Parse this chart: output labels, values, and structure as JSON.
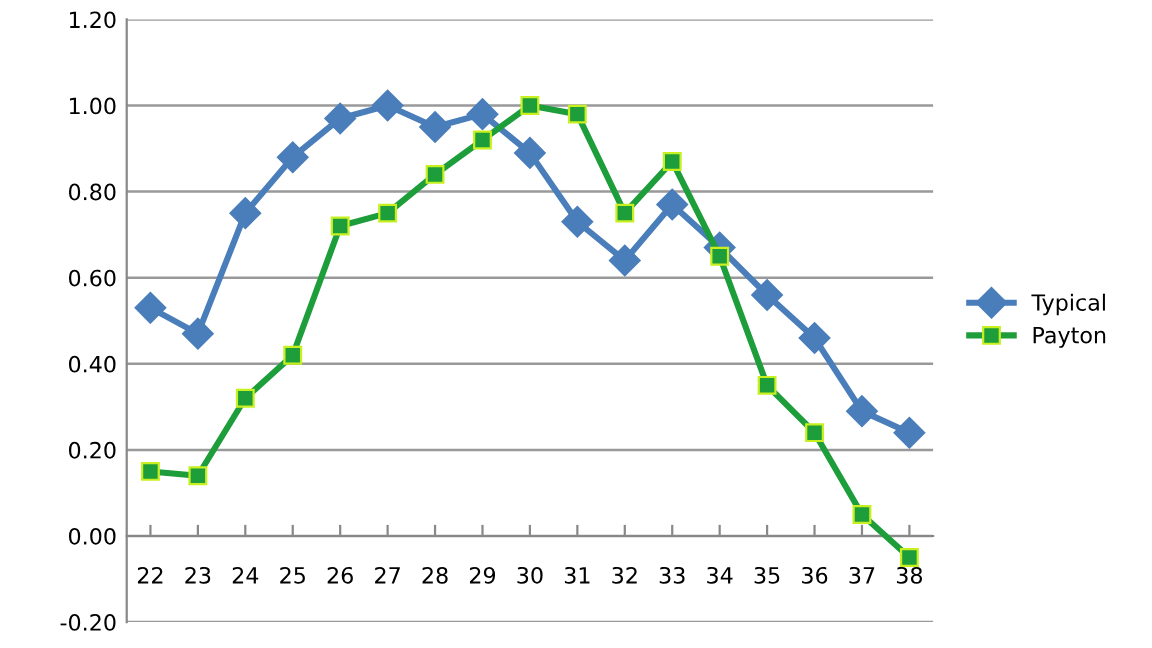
{
  "chart_data": {
    "type": "line",
    "categories": [
      "22",
      "23",
      "24",
      "25",
      "26",
      "27",
      "28",
      "29",
      "30",
      "31",
      "32",
      "33",
      "34",
      "35",
      "36",
      "37",
      "38"
    ],
    "series": [
      {
        "name": "Typical",
        "color": "#4a7ebb",
        "marker": "diamond",
        "values": [
          0.53,
          0.47,
          0.75,
          0.88,
          0.97,
          1.0,
          0.95,
          0.98,
          0.89,
          0.73,
          0.64,
          0.77,
          0.67,
          0.56,
          0.46,
          0.29,
          0.24
        ]
      },
      {
        "name": "Payton",
        "color": "#1e9e3a",
        "marker": "square",
        "values": [
          0.15,
          0.14,
          0.32,
          0.42,
          0.72,
          0.75,
          0.84,
          0.92,
          1.0,
          0.98,
          0.75,
          0.87,
          0.65,
          0.35,
          0.24,
          0.05,
          -0.05
        ]
      }
    ],
    "ylim": [
      -0.2,
      1.2
    ],
    "yticks": [
      {
        "value": -0.2,
        "label": "-0.20"
      },
      {
        "value": 0,
        "label": "0.00"
      },
      {
        "value": 0.2,
        "label": "0.20"
      },
      {
        "value": 0.4,
        "label": "0.40"
      },
      {
        "value": 0.6,
        "label": "0.60"
      },
      {
        "value": 0.8,
        "label": "0.80"
      },
      {
        "value": 1.0,
        "label": "1.00"
      },
      {
        "value": 1.2,
        "label": "1.20"
      }
    ],
    "grid": "y",
    "legend": "right",
    "line_style": "solid"
  }
}
